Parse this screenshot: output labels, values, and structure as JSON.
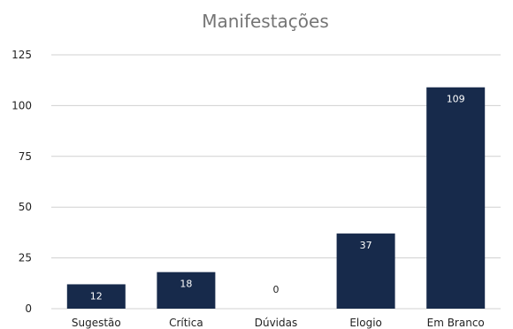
{
  "chart_data": {
    "type": "bar",
    "title": "Manifestações",
    "xlabel": "",
    "ylabel": "",
    "categories": [
      "Sugestão",
      "Crítica",
      "Dúvidas",
      "Elogio",
      "Em Branco"
    ],
    "values": [
      12,
      18,
      0,
      37,
      109
    ],
    "data_labels": [
      "12",
      "18",
      "0",
      "37",
      "109"
    ],
    "yticks": [
      0,
      25,
      50,
      75,
      100,
      125
    ],
    "ytick_labels": [
      "0",
      "25",
      "50",
      "75",
      "100",
      "125"
    ],
    "ylim": [
      0,
      125
    ],
    "grid": true,
    "legend": "none",
    "colors": {
      "bar": "#172a4b",
      "grid": "#d0d0d0",
      "label_on_bar": "#ffffff",
      "label_zero": "#222222"
    }
  }
}
